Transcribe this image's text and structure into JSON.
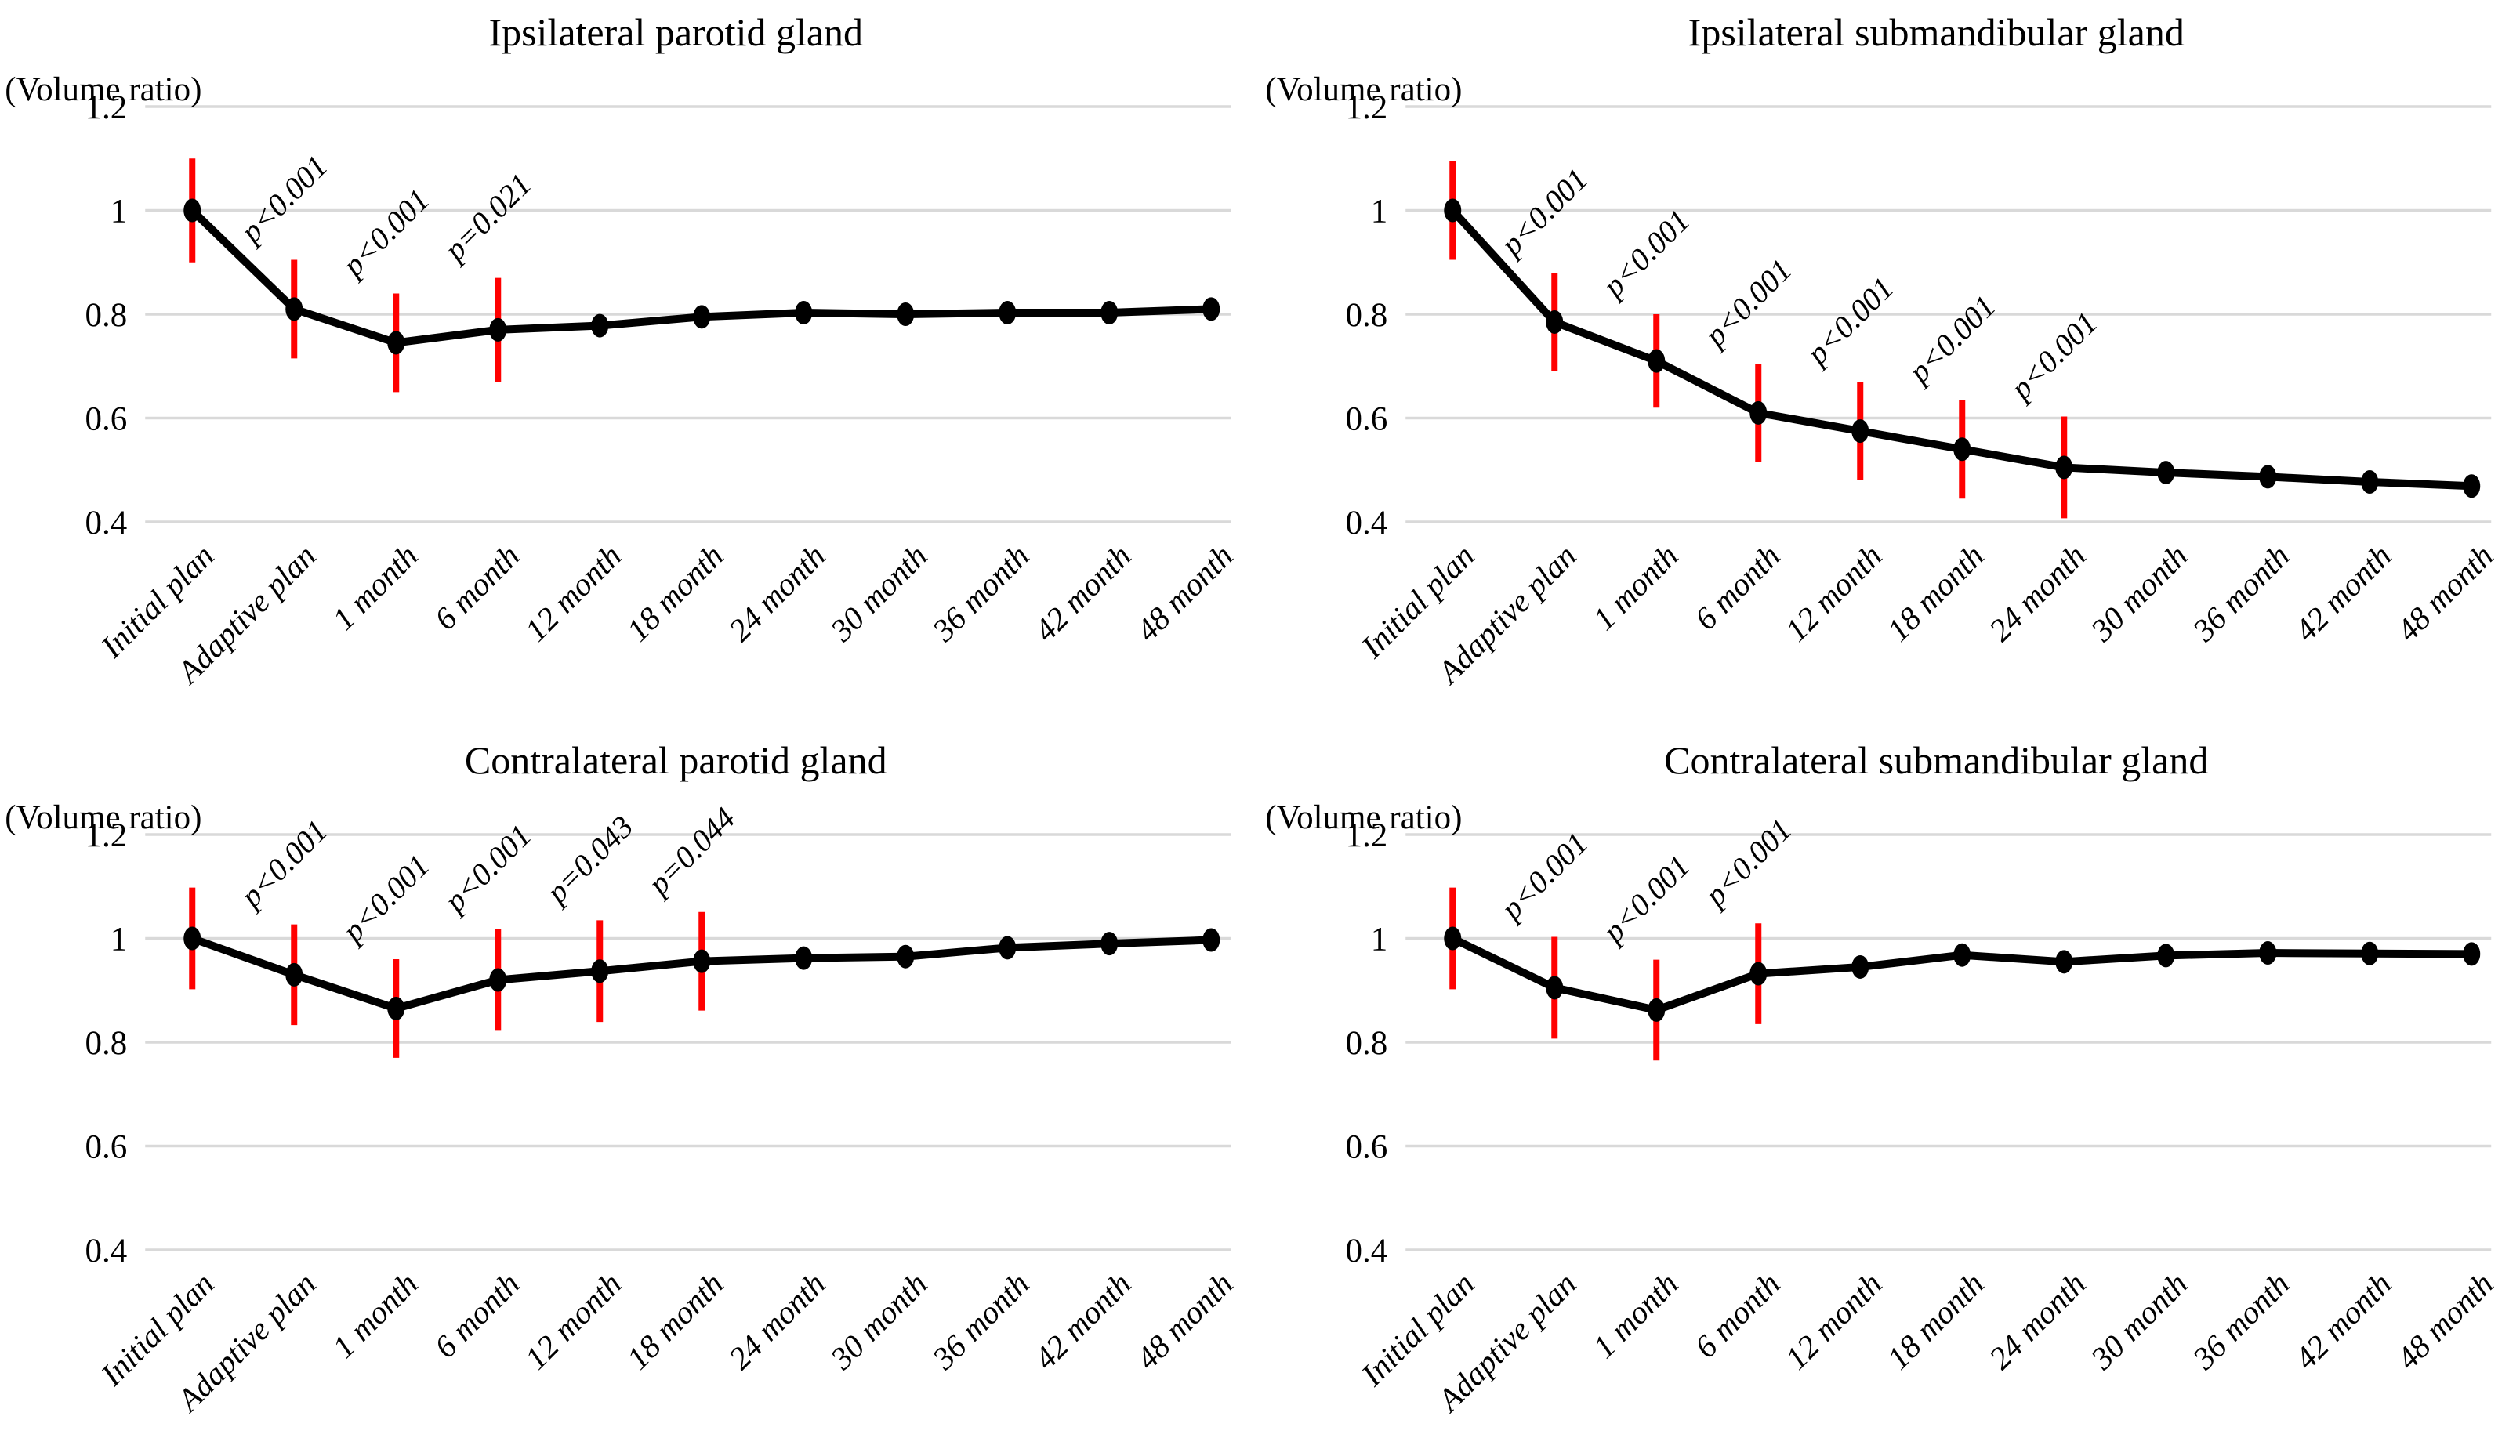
{
  "figure": {
    "y_axis_unit_label": "(Volume ratio)"
  },
  "colors": {
    "background": "#ffffff",
    "line": "#000000",
    "marker": "#000000",
    "error_bar": "#ff0000",
    "gridline": "#d9d9d9",
    "text": "#000000"
  },
  "chart_data": [
    {
      "type": "line",
      "title": "Ipsilateral parotid gland",
      "ylabel": "(Volume ratio)",
      "xlabel": "",
      "ylim": [
        0.4,
        1.2
      ],
      "yticks": [
        "1.2",
        "1",
        "0.8",
        "0.6",
        "0.4"
      ],
      "grid": "horizontal",
      "legend": "none",
      "categories": [
        "Initial plan",
        "Adaptive plan",
        "1 month",
        "6 month",
        "12 month",
        "18 month",
        "24 month",
        "30 month",
        "36 month",
        "42 month",
        "48 month"
      ],
      "values": [
        1.0,
        0.81,
        0.745,
        0.77,
        0.778,
        0.795,
        0.803,
        0.8,
        0.803,
        0.803,
        0.81
      ],
      "error_bars": [
        0.1,
        0.095,
        0.095,
        0.1,
        null,
        null,
        null,
        null,
        null,
        null,
        null
      ],
      "p_values": [
        null,
        "p<0.001",
        "p<0.001",
        "p=0.021",
        null,
        null,
        null,
        null,
        null,
        null,
        null
      ]
    },
    {
      "type": "line",
      "title": "Ipsilateral submandibular gland",
      "ylabel": "(Volume ratio)",
      "xlabel": "",
      "ylim": [
        0.4,
        1.2
      ],
      "yticks": [
        "1.2",
        "1",
        "0.8",
        "0.6",
        "0.4"
      ],
      "grid": "horizontal",
      "legend": "none",
      "categories": [
        "Initial plan",
        "Adaptive plan",
        "1 month",
        "6 month",
        "12 month",
        "18 month",
        "24 month",
        "30 month",
        "36 month",
        "42 month",
        "48 month"
      ],
      "values": [
        1.0,
        0.785,
        0.71,
        0.61,
        0.575,
        0.54,
        0.505,
        0.495,
        0.487,
        0.477,
        0.469
      ],
      "error_bars": [
        0.095,
        0.095,
        0.09,
        0.095,
        0.095,
        0.095,
        0.098,
        null,
        null,
        null,
        null
      ],
      "p_values": [
        null,
        "p<0.001",
        "p<0.001",
        "p<0.001",
        "p<0.001",
        "p<0.001",
        "p<0.001",
        null,
        null,
        null,
        null
      ]
    },
    {
      "type": "line",
      "title": "Contralateral parotid gland",
      "ylabel": "(Volume ratio)",
      "xlabel": "",
      "ylim": [
        0.4,
        1.2
      ],
      "yticks": [
        "1.2",
        "1",
        "0.8",
        "0.6",
        "0.4"
      ],
      "grid": "horizontal",
      "legend": "none",
      "categories": [
        "Initial plan",
        "Adaptive plan",
        "1 month",
        "6 month",
        "12 month",
        "18 month",
        "24 month",
        "30 month",
        "36 month",
        "42 month",
        "48 month"
      ],
      "values": [
        1.0,
        0.93,
        0.865,
        0.92,
        0.937,
        0.956,
        0.962,
        0.965,
        0.982,
        0.99,
        0.997
      ],
      "error_bars": [
        0.098,
        0.097,
        0.095,
        0.098,
        0.098,
        0.095,
        null,
        null,
        null,
        null,
        null
      ],
      "p_values": [
        null,
        "p<0.001",
        "p<0.001",
        "p<0.001",
        "p=0.043",
        "p=0.044",
        null,
        null,
        null,
        null,
        null
      ]
    },
    {
      "type": "line",
      "title": "Contralateral submandibular gland",
      "ylabel": "(Volume ratio)",
      "xlabel": "",
      "ylim": [
        0.4,
        1.2
      ],
      "yticks": [
        "1.2",
        "1",
        "0.8",
        "0.6",
        "0.4"
      ],
      "grid": "horizontal",
      "legend": "none",
      "categories": [
        "Initial plan",
        "Adaptive plan",
        "1 month",
        "6 month",
        "12 month",
        "18 month",
        "24 month",
        "30 month",
        "36 month",
        "42 month",
        "48 month"
      ],
      "values": [
        1.0,
        0.905,
        0.862,
        0.932,
        0.945,
        0.968,
        0.955,
        0.967,
        0.972,
        0.971,
        0.97
      ],
      "error_bars": [
        0.098,
        0.098,
        0.097,
        0.097,
        null,
        null,
        null,
        null,
        null,
        null,
        null
      ],
      "p_values": [
        null,
        "p<0.001",
        "p<0.001",
        "p<0.001",
        null,
        null,
        null,
        null,
        null,
        null,
        null
      ]
    }
  ]
}
